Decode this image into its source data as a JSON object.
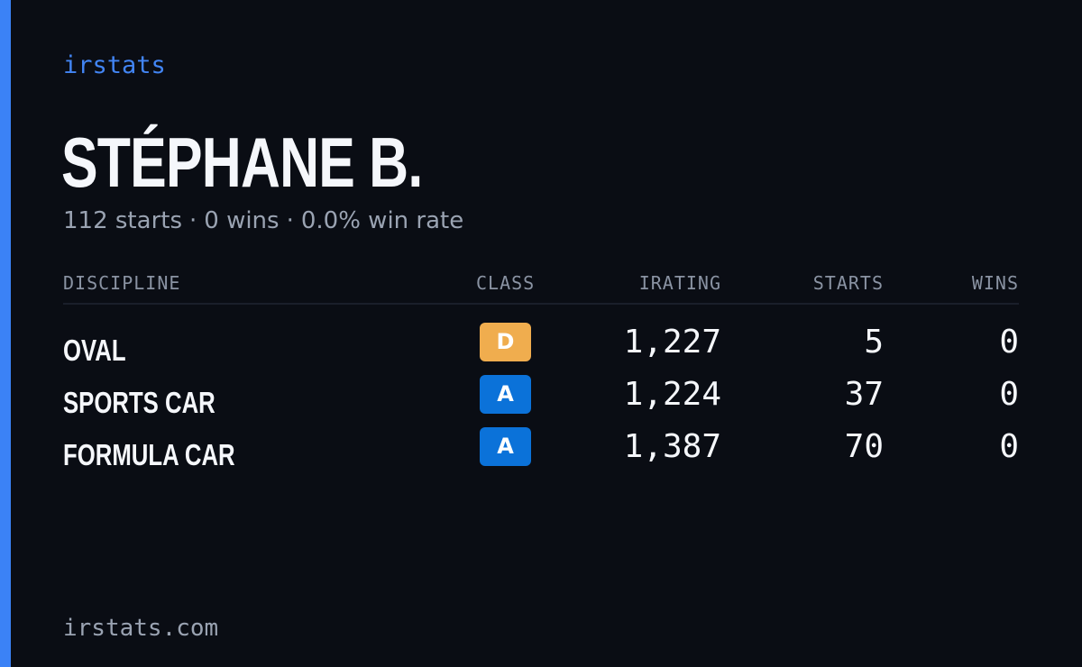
{
  "brand": "irstats",
  "driver": {
    "name": "STÉPHANE B.",
    "starts_text": "112 starts",
    "wins_text": "0 wins",
    "win_rate_text": "0.0% win rate",
    "separator": "·"
  },
  "table": {
    "headers": {
      "discipline": "DISCIPLINE",
      "class": "CLASS",
      "irating": "IRATING",
      "starts": "STARTS",
      "wins": "WINS"
    },
    "rows": [
      {
        "discipline": "OVAL",
        "class": "D",
        "class_color": "#f0ad4e",
        "irating": "1,227",
        "starts": "5",
        "wins": "0"
      },
      {
        "discipline": "SPORTS CAR",
        "class": "A",
        "class_color": "#0b72d9",
        "irating": "1,224",
        "starts": "37",
        "wins": "0"
      },
      {
        "discipline": "FORMULA CAR",
        "class": "A",
        "class_color": "#0b72d9",
        "irating": "1,387",
        "starts": "70",
        "wins": "0"
      }
    ]
  },
  "footer": "irstats.com",
  "colors": {
    "accent": "#3b82f6",
    "background": "#0a0d14",
    "brand_text": "#4285f4",
    "muted_text": "#9aa3b2"
  }
}
